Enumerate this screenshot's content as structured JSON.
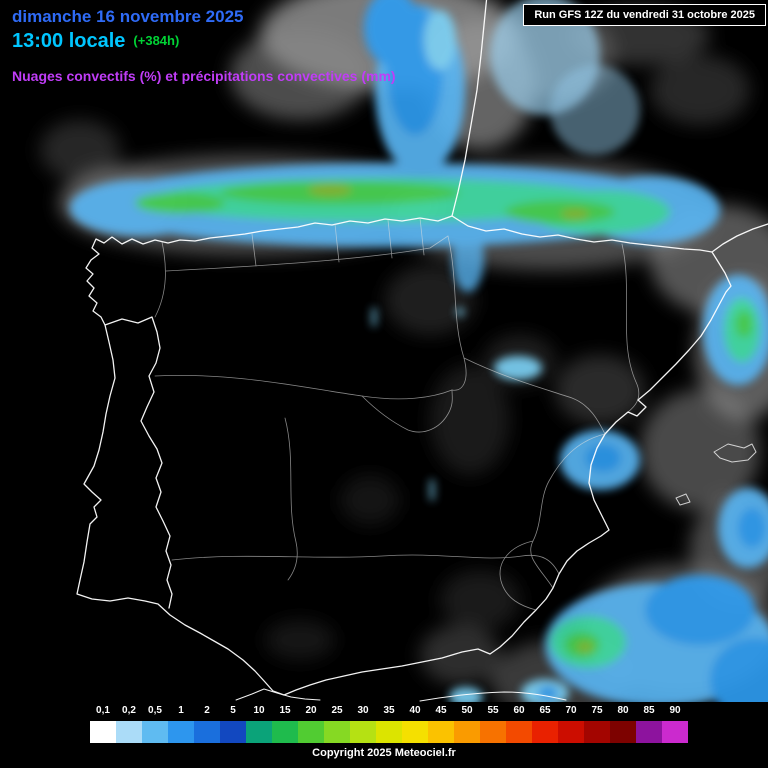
{
  "header": {
    "date": "dimanche 16 novembre 2025",
    "time": "13:00 locale",
    "forecast_offset": "(+384h)",
    "subtitle": "Nuages convectifs (%) et précipitations convectives (mm)",
    "run_info": "Run GFS 12Z du vendredi 31 octobre 2025"
  },
  "footer": {
    "copyright": "Copyright 2025 Meteociel.fr"
  },
  "legend": {
    "unit": "mm",
    "items": [
      {
        "label": "0,1",
        "color": "#ffffff"
      },
      {
        "label": "0,2",
        "color": "#abdcf8"
      },
      {
        "label": "0,5",
        "color": "#5fbbf1"
      },
      {
        "label": "1",
        "color": "#2d96ee"
      },
      {
        "label": "2",
        "color": "#1a6fdd"
      },
      {
        "label": "5",
        "color": "#1248c0"
      },
      {
        "label": "10",
        "color": "#0ba379"
      },
      {
        "label": "15",
        "color": "#1fbb4d"
      },
      {
        "label": "20",
        "color": "#51cc32"
      },
      {
        "label": "25",
        "color": "#86d923"
      },
      {
        "label": "30",
        "color": "#b5e113"
      },
      {
        "label": "35",
        "color": "#dce400"
      },
      {
        "label": "40",
        "color": "#f5e000"
      },
      {
        "label": "45",
        "color": "#fbc200"
      },
      {
        "label": "50",
        "color": "#fa9b00"
      },
      {
        "label": "55",
        "color": "#f77200"
      },
      {
        "label": "60",
        "color": "#f34a00"
      },
      {
        "label": "65",
        "color": "#e92100"
      },
      {
        "label": "70",
        "color": "#cc0d00"
      },
      {
        "label": "75",
        "color": "#a30500"
      },
      {
        "label": "80",
        "color": "#7d0200"
      },
      {
        "label": "85",
        "color": "#8d139e"
      },
      {
        "label": "90",
        "color": "#cb2ace"
      }
    ]
  },
  "map": {
    "region": "Iberian Peninsula (Spain / Portugal)",
    "colors": {
      "background": "#000000",
      "coastline": "#ffffff",
      "cloud_gray": "#9a9a9a",
      "precip_light_blue": "#58b4f1",
      "precip_blue": "#2d9cf0",
      "precip_cyan": "#7cd0f4",
      "precip_teal": "#41dba4",
      "precip_green": "#44d24f",
      "precip_olive": "#86b82e"
    }
  }
}
